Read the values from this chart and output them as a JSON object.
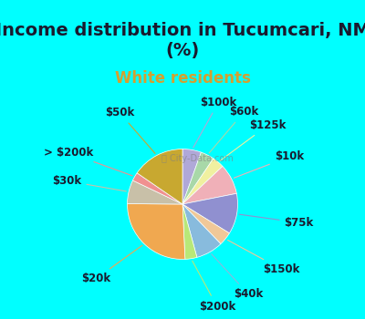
{
  "title": "Income distribution in Tucumcari, NM\n(%)",
  "subtitle": "White residents",
  "background_top": "#00FFFF",
  "background_bottom": "#00FFFF",
  "chart_bg": "#e8f5e9",
  "watermark": "City-Data.com",
  "slices": [
    {
      "label": "$100k",
      "value": 5.5,
      "color": "#b0a8d8"
    },
    {
      "label": "$60k",
      "value": 4.0,
      "color": "#a8d8a8"
    },
    {
      "label": "$125k",
      "value": 3.5,
      "color": "#f0f0a0"
    },
    {
      "label": "$10k",
      "value": 9.0,
      "color": "#f0b0b8"
    },
    {
      "label": "$75k",
      "value": 12.0,
      "color": "#9090d0"
    },
    {
      "label": "$150k",
      "value": 4.0,
      "color": "#f0c898"
    },
    {
      "label": "$40k",
      "value": 8.0,
      "color": "#88bbdd"
    },
    {
      "label": "$200k",
      "value": 3.5,
      "color": "#b8e878"
    },
    {
      "label": "$20k",
      "value": 26.0,
      "color": "#f0a850"
    },
    {
      "label": "$30k",
      "value": 7.0,
      "color": "#c8c0a8"
    },
    {
      "label": "> $200k",
      "value": 2.5,
      "color": "#f09090"
    },
    {
      "label": "$50k",
      "value": 15.5,
      "color": "#c8a830"
    }
  ],
  "title_fontsize": 14,
  "subtitle_fontsize": 12,
  "label_fontsize": 8.5
}
